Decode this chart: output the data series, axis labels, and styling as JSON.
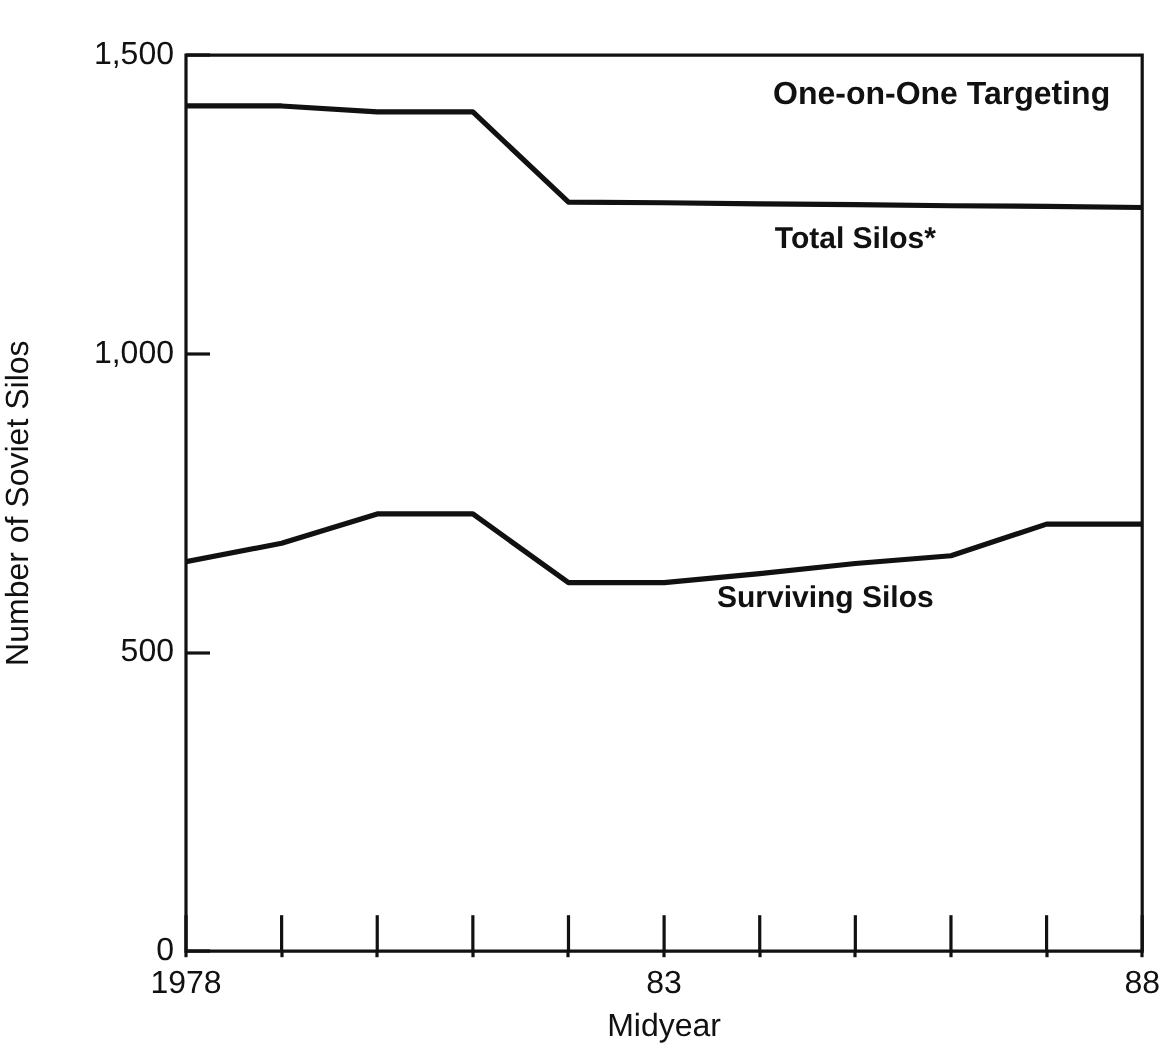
{
  "chart_data": {
    "type": "line",
    "title": "One-on-One Targeting",
    "xlabel": "Midyear",
    "ylabel": "Number of Soviet Silos",
    "x": [
      1978,
      1979,
      1980,
      1981,
      1982,
      1983,
      1984,
      1985,
      1986,
      1987,
      1988
    ],
    "series": [
      {
        "name": "Total Silos*",
        "color": "#111111",
        "values": [
          1415,
          1415,
          1405,
          1405,
          1254,
          1253,
          1251,
          1250,
          1248,
          1247,
          1245
        ]
      },
      {
        "name": "Surviving Silos",
        "color": "#111111",
        "values": [
          652,
          683,
          732,
          732,
          617,
          617,
          632,
          649,
          662,
          715,
          715
        ]
      }
    ],
    "xlim": [
      1978,
      1988
    ],
    "xticks": [
      1978,
      {
        "value": 1979,
        "label": null
      },
      {
        "value": 1980,
        "label": null
      },
      {
        "value": 1981,
        "label": null
      },
      {
        "value": 1982,
        "label": null
      },
      {
        "value": 1983,
        "label": "83"
      },
      {
        "value": 1984,
        "label": null
      },
      {
        "value": 1985,
        "label": null
      },
      {
        "value": 1986,
        "label": null
      },
      {
        "value": 1987,
        "label": null
      },
      {
        "value": 1988,
        "label": "88"
      }
    ],
    "ylim": [
      0,
      1500
    ],
    "yticks": [
      0,
      {
        "value": 500,
        "label": "500"
      },
      {
        "value": 1000,
        "label": "1,000"
      },
      {
        "value": 1500,
        "label": "1,500"
      }
    ],
    "grid": false,
    "legend": false,
    "marker": "none",
    "line_style": "solid"
  }
}
